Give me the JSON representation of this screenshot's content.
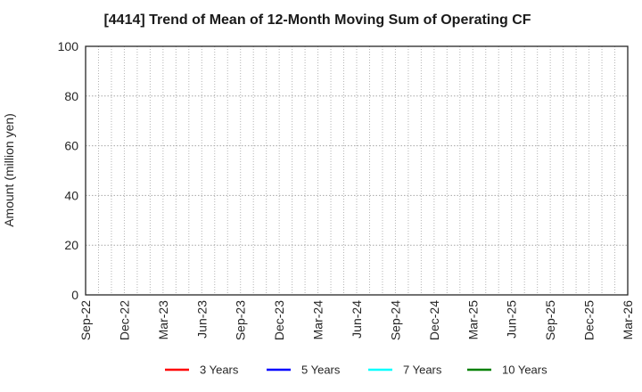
{
  "chart_data": {
    "type": "line",
    "title": "[4414]  Trend of Mean of 12-Month Moving Sum of Operating CF",
    "ylabel": "Amount (million yen)",
    "xlabel": "",
    "ylim": [
      0,
      100
    ],
    "yticks": [
      0,
      20,
      40,
      60,
      80,
      100
    ],
    "x_tick_labels": [
      "Sep-22",
      "Dec-22",
      "Mar-23",
      "Jun-23",
      "Sep-23",
      "Dec-23",
      "Mar-24",
      "Jun-24",
      "Sep-24",
      "Dec-24",
      "Mar-25",
      "Jun-25",
      "Sep-25",
      "Dec-25",
      "Mar-26"
    ],
    "months_per_tick": 3,
    "grid": true,
    "grid_style": "dotted",
    "legend_position": "bottom",
    "series": [
      {
        "name": "3 Years",
        "color": "#ff0000",
        "x": [],
        "values": []
      },
      {
        "name": "5 Years",
        "color": "#0000ff",
        "x": [],
        "values": []
      },
      {
        "name": "7 Years",
        "color": "#00ffff",
        "x": [],
        "values": []
      },
      {
        "name": "10 Years",
        "color": "#008000",
        "x": [],
        "values": []
      }
    ]
  }
}
